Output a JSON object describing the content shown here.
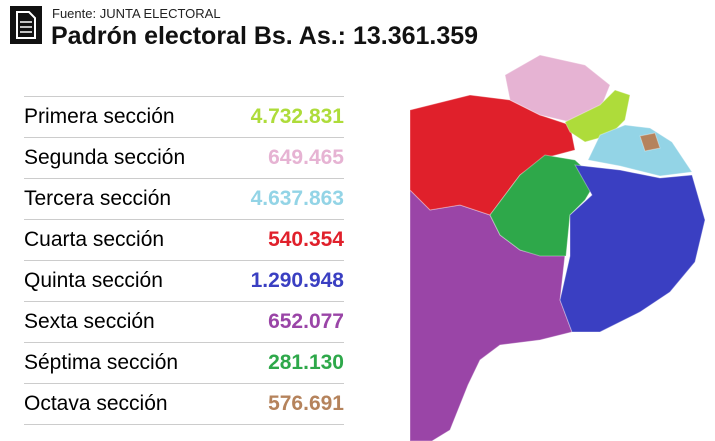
{
  "header": {
    "source": "Fuente: JUNTA ELECTORAL",
    "title": "Padrón electoral Bs. As.: 13.361.359"
  },
  "table": {
    "rows": [
      {
        "name": "Primera sección",
        "value": "4.732.831",
        "color": "#aedc3a"
      },
      {
        "name": "Segunda sección",
        "value": "649.465",
        "color": "#e6b3d3"
      },
      {
        "name": "Tercera sección",
        "value": "4.637.863",
        "color": "#93d4e6"
      },
      {
        "name": "Cuarta sección",
        "value": "540.354",
        "color": "#e0202b"
      },
      {
        "name": "Quinta sección",
        "value": "1.290.948",
        "color": "#3a3fc2"
      },
      {
        "name": "Sexta sección",
        "value": "652.077",
        "color": "#9a45a7"
      },
      {
        "name": "Séptima sección",
        "value": "281.130",
        "color": "#2ea84a"
      },
      {
        "name": "Octava sección",
        "value": "576.691",
        "color": "#b5835c"
      }
    ]
  }
}
